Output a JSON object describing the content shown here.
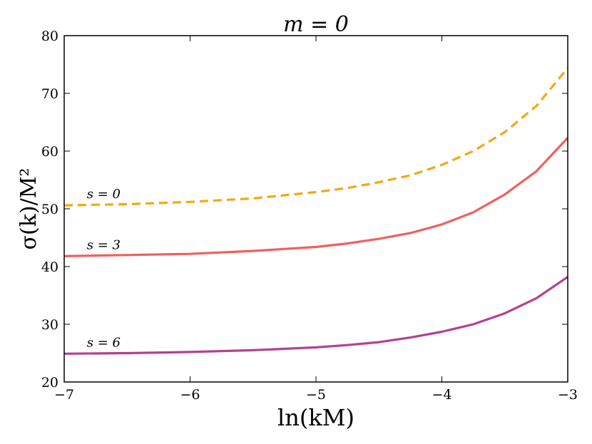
{
  "chart_data": {
    "type": "line",
    "title": "m = 0",
    "xlabel": "ln(kM)",
    "ylabel": "σ(k)/M²",
    "xlim": [
      -7,
      -3
    ],
    "ylim": [
      20,
      80
    ],
    "xticks": [
      -7,
      -6,
      -5,
      -4,
      -3
    ],
    "yticks": [
      20,
      30,
      40,
      50,
      60,
      70,
      80
    ],
    "xtick_labels": [
      "−7",
      "−6",
      "−5",
      "−4",
      "−3"
    ],
    "ytick_labels": [
      "20",
      "30",
      "40",
      "50",
      "60",
      "70",
      "80"
    ],
    "grid": false,
    "legend": "none",
    "series": [
      {
        "name": "s = 0",
        "color": "#f5a80b",
        "style": "dashed",
        "x": [
          -7.0,
          -6.5,
          -6.0,
          -5.5,
          -5.0,
          -4.75,
          -4.5,
          -4.25,
          -4.0,
          -3.75,
          -3.5,
          -3.25,
          -3.0
        ],
        "values": [
          50.6,
          50.8,
          51.2,
          51.8,
          52.9,
          53.6,
          54.6,
          55.8,
          57.6,
          60.0,
          63.3,
          67.8,
          74.4
        ]
      },
      {
        "name": "s = 3",
        "color": "#f0605e",
        "style": "solid",
        "x": [
          -7.0,
          -6.5,
          -6.0,
          -5.5,
          -5.0,
          -4.75,
          -4.5,
          -4.25,
          -4.0,
          -3.75,
          -3.5,
          -3.25,
          -3.0
        ],
        "values": [
          41.8,
          42.0,
          42.2,
          42.7,
          43.4,
          44.0,
          44.8,
          45.8,
          47.3,
          49.4,
          52.5,
          56.5,
          62.3
        ]
      },
      {
        "name": "s = 6",
        "color": "#b5418d",
        "style": "solid",
        "x": [
          -7.0,
          -6.5,
          -6.0,
          -5.5,
          -5.0,
          -4.75,
          -4.5,
          -4.25,
          -4.0,
          -3.75,
          -3.5,
          -3.25,
          -3.0
        ],
        "values": [
          24.9,
          25.0,
          25.2,
          25.5,
          26.0,
          26.4,
          26.9,
          27.7,
          28.7,
          30.0,
          31.9,
          34.5,
          38.2
        ]
      }
    ],
    "annotations": [
      {
        "text": "s = 0",
        "series": 0
      },
      {
        "text": "s = 3",
        "series": 1
      },
      {
        "text": "s = 6",
        "series": 2
      }
    ]
  }
}
